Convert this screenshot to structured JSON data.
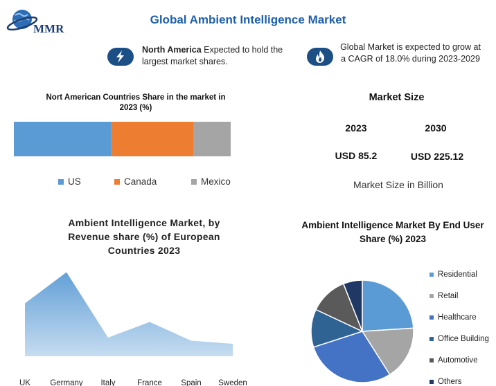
{
  "header": {
    "logo_text": "MMR",
    "title": "Global Ambient Intelligence Market"
  },
  "highlights": {
    "region_bold": "North America",
    "region_rest": " Expected to hold the largest market shares.",
    "cagr_text": "Global Market is expected to grow at a CAGR of 18.0% during 2023-2029",
    "region_icon": "lightning-icon",
    "cagr_icon": "flame-icon"
  },
  "market_size": {
    "title": "Market Size",
    "years": [
      "2023",
      "2030"
    ],
    "values": [
      "USD 85.2",
      "USD 225.12"
    ],
    "unit_note": "Market Size in Billion"
  },
  "chart_data": [
    {
      "type": "bar",
      "title": "Nort American Countries Share in the market in 2023 (%)",
      "stacked": true,
      "orientation": "horizontal",
      "categories": [
        ""
      ],
      "series": [
        {
          "name": "US",
          "values": [
            45
          ],
          "color": "#5b9bd5"
        },
        {
          "name": "Canada",
          "values": [
            38
          ],
          "color": "#ed7d31"
        },
        {
          "name": "Mexico",
          "values": [
            17
          ],
          "color": "#a5a5a5"
        }
      ],
      "legend": "bottom",
      "grid": false
    },
    {
      "type": "area",
      "title": "Ambient Intelligence Market, by Revenue share (%) of European Countries 2023",
      "categories": [
        "UK",
        "Germany",
        "Italy",
        "France",
        "Spain",
        "Sweden"
      ],
      "values": [
        17,
        27,
        6,
        11,
        5,
        4
      ],
      "ylim": [
        0,
        30
      ],
      "color": "#5b9bd5",
      "grid": false
    },
    {
      "type": "pie",
      "title": "Ambient Intelligence Market By End User Share (%) 2023",
      "labels": [
        "Residential",
        "Retail",
        "Healthcare",
        "Office Building",
        "Automotive",
        "Others"
      ],
      "values": [
        24,
        17,
        29,
        12,
        12,
        6
      ],
      "colors": [
        "#5b9bd5",
        "#a5a5a5",
        "#4472c4",
        "#2e6394",
        "#5a5a5a",
        "#1f3864"
      ],
      "legend": "right"
    }
  ]
}
